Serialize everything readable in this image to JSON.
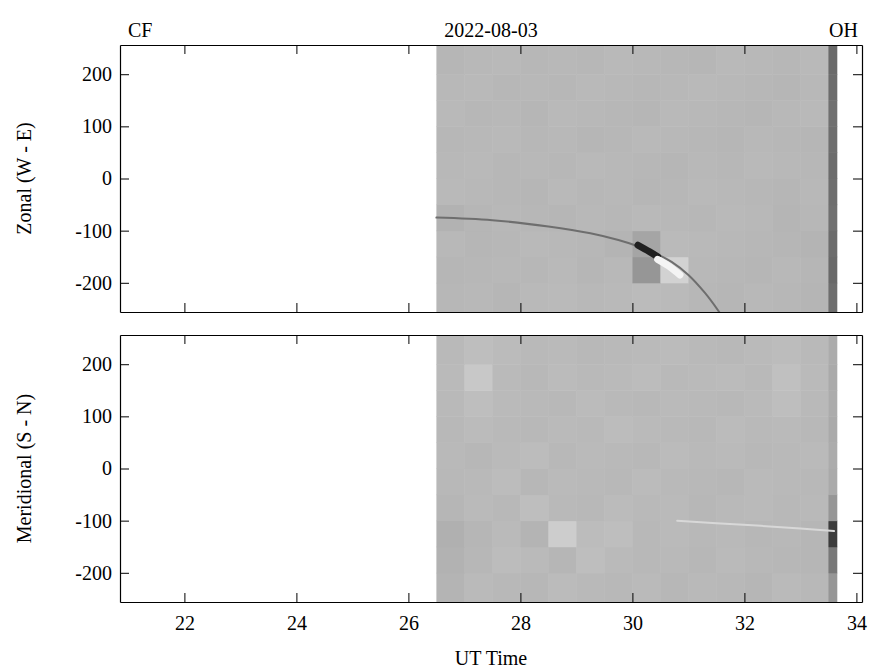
{
  "chart_data": [
    {
      "type": "heatmap",
      "title": "2022-08-03",
      "annotations": [
        "CF",
        "OH"
      ],
      "y_label": "Zonal (W - E)",
      "tick_labels": "y",
      "xlim": [
        20.85,
        34.1
      ],
      "xticks": [
        22,
        24,
        26,
        28,
        30,
        32,
        34
      ],
      "ylim": [
        -256,
        256
      ],
      "yticks": [
        -200,
        -100,
        0,
        100,
        200
      ],
      "x": [
        26.5,
        27,
        27.5,
        28,
        28.5,
        29,
        29.5,
        30,
        30.5,
        31,
        31.5,
        32,
        32.5,
        33,
        33.5,
        33.65
      ],
      "y": [
        -256,
        -200,
        -150,
        -100,
        -50,
        0,
        50,
        100,
        150,
        200,
        256
      ],
      "cells": [
        [
          183,
          184,
          182,
          185,
          186,
          184,
          185,
          187,
          186,
          183,
          182,
          184,
          183,
          181,
          110
        ],
        [
          182,
          183,
          184,
          183,
          185,
          182,
          184,
          150,
          210,
          184,
          183,
          182,
          184,
          182,
          105
        ],
        [
          184,
          182,
          183,
          185,
          184,
          183,
          180,
          165,
          186,
          185,
          184,
          183,
          182,
          180,
          108
        ],
        [
          178,
          182,
          184,
          183,
          182,
          184,
          183,
          185,
          184,
          183,
          185,
          184,
          181,
          183,
          112
        ],
        [
          185,
          184,
          183,
          182,
          185,
          183,
          184,
          182,
          183,
          185,
          184,
          183,
          182,
          184,
          110
        ],
        [
          184,
          185,
          183,
          184,
          183,
          185,
          184,
          183,
          182,
          184,
          183,
          185,
          184,
          183,
          108
        ],
        [
          183,
          184,
          185,
          183,
          184,
          182,
          183,
          185,
          184,
          183,
          182,
          184,
          183,
          182,
          110
        ],
        [
          185,
          183,
          184,
          182,
          185,
          184,
          183,
          182,
          185,
          184,
          183,
          182,
          184,
          185,
          112
        ],
        [
          184,
          185,
          183,
          184,
          183,
          185,
          184,
          183,
          184,
          185,
          184,
          183,
          182,
          184,
          108
        ],
        [
          182,
          184,
          185,
          183,
          184,
          183,
          185,
          184,
          183,
          182,
          185,
          184,
          183,
          185,
          106
        ]
      ],
      "series": [
        {
          "color": "#6e6e6e",
          "line_style": "solid",
          "x": [
            26.5,
            27.5,
            28.5,
            29.25,
            29.75,
            30.1,
            30.4,
            30.7,
            31.0,
            31.3,
            31.55
          ],
          "values": [
            -75,
            -80,
            -92,
            -105,
            -118,
            -130,
            -143,
            -160,
            -185,
            -220,
            -256
          ]
        },
        {
          "color": "#202020",
          "line_style": "thick",
          "x": [
            30.1,
            30.3,
            30.45
          ],
          "values": [
            -128,
            -140,
            -150
          ]
        },
        {
          "color": "#f4f4f4",
          "line_style": "thick",
          "x": [
            30.45,
            30.65,
            30.85
          ],
          "values": [
            -155,
            -168,
            -185
          ]
        }
      ]
    },
    {
      "type": "heatmap",
      "x_label": "UT Time",
      "y_label": "Meridional (S - N)",
      "xlim": [
        20.85,
        34.1
      ],
      "xticks": [
        22,
        24,
        26,
        28,
        30,
        32,
        34
      ],
      "ylim": [
        -256,
        256
      ],
      "yticks": [
        -200,
        -100,
        0,
        100,
        200
      ],
      "x": [
        26.5,
        27,
        27.5,
        28,
        28.5,
        29,
        29.5,
        30,
        30.5,
        31,
        31.5,
        32,
        32.5,
        33,
        33.5,
        33.65
      ],
      "y": [
        -256,
        -200,
        -150,
        -100,
        -50,
        0,
        50,
        100,
        150,
        200,
        256
      ],
      "cells": [
        [
          180,
          186,
          184,
          183,
          187,
          185,
          184,
          186,
          183,
          185,
          184,
          182,
          186,
          184,
          150
        ],
        [
          178,
          183,
          188,
          186,
          182,
          190,
          186,
          184,
          185,
          183,
          186,
          184,
          183,
          182,
          120
        ],
        [
          176,
          182,
          186,
          180,
          205,
          188,
          190,
          184,
          186,
          184,
          185,
          183,
          184,
          182,
          60
        ],
        [
          182,
          186,
          184,
          190,
          185,
          184,
          187,
          185,
          186,
          183,
          185,
          186,
          184,
          185,
          150
        ],
        [
          184,
          185,
          188,
          183,
          186,
          185,
          184,
          187,
          185,
          184,
          183,
          186,
          185,
          184,
          170
        ],
        [
          185,
          183,
          186,
          188,
          184,
          186,
          185,
          184,
          187,
          185,
          186,
          184,
          185,
          186,
          172
        ],
        [
          184,
          187,
          185,
          184,
          186,
          185,
          188,
          186,
          185,
          184,
          187,
          185,
          186,
          184,
          170
        ],
        [
          185,
          190,
          186,
          185,
          184,
          187,
          185,
          184,
          186,
          185,
          184,
          186,
          190,
          185,
          172
        ],
        [
          186,
          200,
          186,
          184,
          187,
          185,
          186,
          188,
          185,
          186,
          187,
          185,
          192,
          186,
          170
        ],
        [
          185,
          190,
          187,
          185,
          186,
          184,
          185,
          186,
          187,
          185,
          184,
          186,
          188,
          185,
          172
        ]
      ],
      "series": [
        {
          "color": "#d8d8d8",
          "line_style": "solid",
          "x": [
            30.8,
            31.5,
            32.3,
            33,
            33.6
          ],
          "values": [
            -100,
            -105,
            -110,
            -115,
            -120
          ]
        }
      ]
    }
  ]
}
